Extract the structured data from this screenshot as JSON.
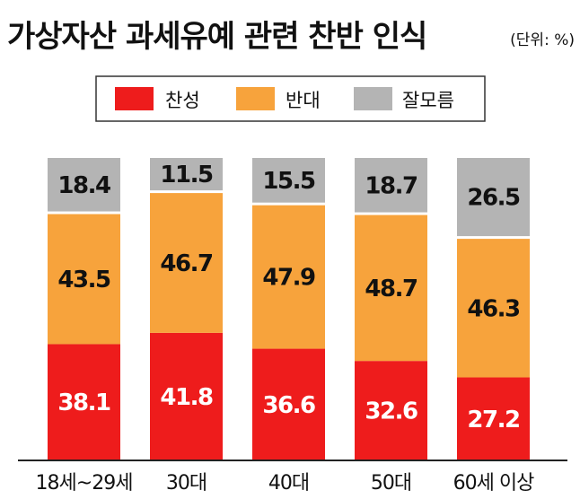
{
  "chart_data": {
    "type": "bar",
    "stacked": true,
    "title": "가상자산 과세유예 관련 찬반 인식",
    "unit": "(단위: %)",
    "categories": [
      "18세~29세",
      "30대",
      "40대",
      "50대",
      "60세 이상"
    ],
    "series": [
      {
        "name": "찬성",
        "color": "#ee1c1c",
        "label_color": "#ffffff",
        "values": [
          38.1,
          41.8,
          36.6,
          32.6,
          27.2
        ]
      },
      {
        "name": "반대",
        "color": "#f7a33c",
        "label_color": "#111111",
        "values": [
          43.5,
          46.7,
          47.9,
          48.7,
          46.3
        ]
      },
      {
        "name": "잘모름",
        "color": "#b4b4b4",
        "label_color": "#111111",
        "values": [
          18.4,
          11.5,
          15.5,
          18.7,
          26.5
        ]
      }
    ],
    "ylim": [
      0,
      100
    ],
    "legend": "top-center",
    "grid": false
  }
}
